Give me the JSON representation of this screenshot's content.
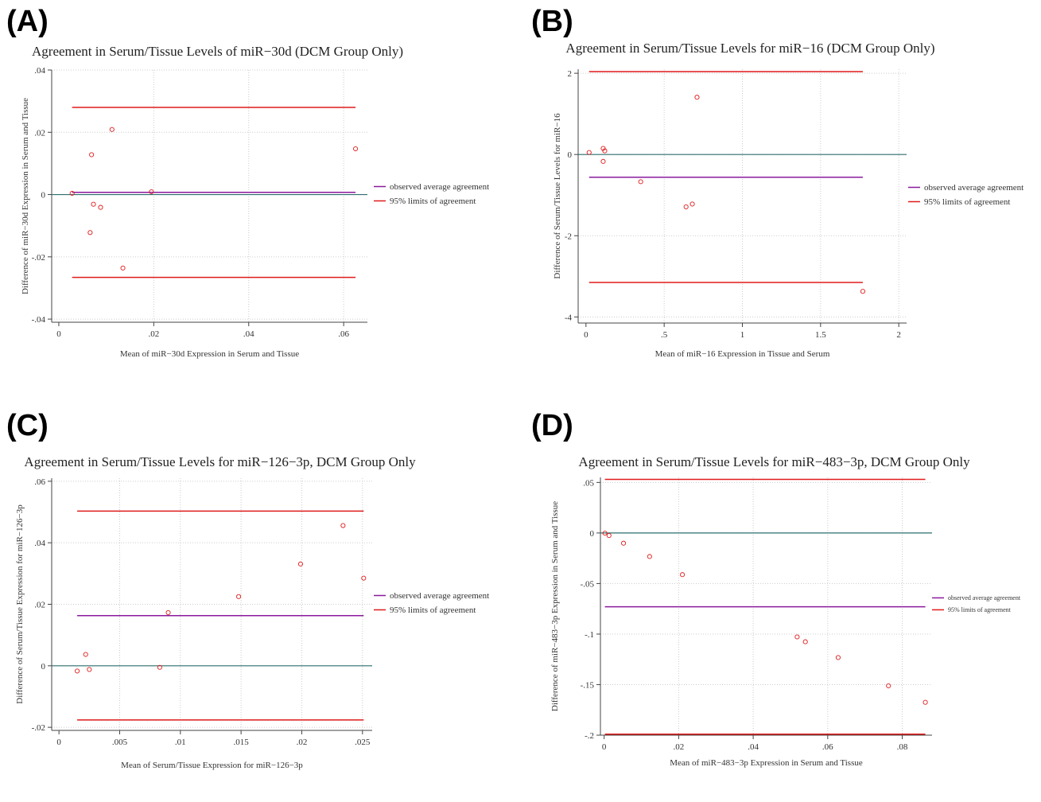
{
  "figure": {
    "panels": [
      {
        "letter": "(A)"
      },
      {
        "letter": "(B)"
      },
      {
        "letter": "(C)"
      },
      {
        "letter": "(D)"
      }
    ]
  },
  "colors": {
    "mean_line": "#8b1a9e",
    "limit_line": "#e01b1b",
    "zero_line": "#2f6f6f",
    "points": "#e01b1b",
    "grid": "#cccccc",
    "axis": "#444444"
  },
  "chart_data": [
    {
      "type": "scatter",
      "title": "Agreement in Serum/Tissue Levels of miR−30d (DCM Group Only)",
      "xlabel": "Mean of miR−30d Expression in Serum and Tissue",
      "ylabel": "Difference of miR−30d Expression in Serum and Tissue",
      "xlim": [
        -0.0015,
        0.065
      ],
      "ylim": [
        -0.041,
        0.04
      ],
      "xticks": [
        0,
        0.02,
        0.04,
        0.06
      ],
      "xtick_labels": [
        "0",
        ".02",
        ".04",
        ".06"
      ],
      "yticks": [
        -0.04,
        -0.02,
        0,
        0.02,
        0.04
      ],
      "ytick_labels": [
        "-.04",
        "-.02",
        "0",
        ".02",
        ".04"
      ],
      "grid": true,
      "legend_position": "right",
      "legend": [
        "observed average agreement",
        "95% limits of agreement"
      ],
      "points": [
        {
          "x": 0.0028,
          "y": 0.0004
        },
        {
          "x": 0.0066,
          "y": -0.0122
        },
        {
          "x": 0.0069,
          "y": 0.0128
        },
        {
          "x": 0.0073,
          "y": -0.0031
        },
        {
          "x": 0.0088,
          "y": -0.0041
        },
        {
          "x": 0.0112,
          "y": 0.0209
        },
        {
          "x": 0.0135,
          "y": -0.0236
        },
        {
          "x": 0.0195,
          "y": 0.0009
        },
        {
          "x": 0.0625,
          "y": 0.0147
        }
      ],
      "mean_difference": 0.0007,
      "limits_of_agreement": [
        -0.0266,
        0.028
      ],
      "reference_line_x_range": [
        0.0028,
        0.0625
      ]
    },
    {
      "type": "scatter",
      "title": "Agreement in Serum/Tissue Levels for miR−16 (DCM Group Only)",
      "xlabel": "Mean of miR−16 Expression in Tissue and Serum",
      "ylabel": "Difference of Serum/Tissue Levels for miR−16",
      "xlim": [
        -0.05,
        2.05
      ],
      "ylim": [
        -4.15,
        2.1
      ],
      "xticks": [
        0,
        0.5,
        1,
        1.5,
        2
      ],
      "xtick_labels": [
        "0",
        ".5",
        "1",
        "1.5",
        "2"
      ],
      "yticks": [
        -4,
        -2,
        0,
        2
      ],
      "ytick_labels": [
        "-4",
        "-2",
        "0",
        "2"
      ],
      "grid": true,
      "legend_position": "right",
      "legend": [
        "observed average agreement",
        "95% limits of agreement"
      ],
      "points": [
        {
          "x": 0.02,
          "y": 0.05
        },
        {
          "x": 0.11,
          "y": 0.15
        },
        {
          "x": 0.12,
          "y": 0.09
        },
        {
          "x": 0.11,
          "y": -0.17
        },
        {
          "x": 0.35,
          "y": -0.67
        },
        {
          "x": 0.64,
          "y": -1.29
        },
        {
          "x": 0.68,
          "y": -1.22
        },
        {
          "x": 0.71,
          "y": 1.41
        },
        {
          "x": 1.77,
          "y": -3.37
        }
      ],
      "mean_difference": -0.56,
      "limits_of_agreement": [
        -3.15,
        2.04
      ],
      "reference_line_x_range": [
        0.02,
        1.77
      ]
    },
    {
      "type": "scatter",
      "title": "Agreement in Serum/Tissue Levels for miR−126−3p, DCM Group Only",
      "xlabel": "Mean of Serum/Tissue Expression for miR−126−3p",
      "ylabel": "Difference of Serum/Tissue Expression for miR−126−3p",
      "xlim": [
        -0.0006,
        0.0258
      ],
      "ylim": [
        -0.021,
        0.061
      ],
      "xticks": [
        0,
        0.005,
        0.01,
        0.015,
        0.02,
        0.025
      ],
      "xtick_labels": [
        "0",
        ".005",
        ".01",
        ".015",
        ".02",
        ".025"
      ],
      "yticks": [
        -0.02,
        0,
        0.02,
        0.04,
        0.06
      ],
      "ytick_labels": [
        "-.02",
        "0",
        ".02",
        ".04",
        ".06"
      ],
      "grid": true,
      "legend_position": "right",
      "legend": [
        "observed average agreement",
        "95% limits of agreement"
      ],
      "points": [
        {
          "x": 0.0015,
          "y": -0.0017
        },
        {
          "x": 0.0022,
          "y": 0.0037
        },
        {
          "x": 0.0025,
          "y": -0.0012
        },
        {
          "x": 0.0083,
          "y": -0.0005
        },
        {
          "x": 0.009,
          "y": 0.0173
        },
        {
          "x": 0.0148,
          "y": 0.0225
        },
        {
          "x": 0.0199,
          "y": 0.0331
        },
        {
          "x": 0.0234,
          "y": 0.0456
        },
        {
          "x": 0.0251,
          "y": 0.0285
        }
      ],
      "mean_difference": 0.0163,
      "limits_of_agreement": [
        -0.0176,
        0.0503
      ],
      "reference_line_x_range": [
        0.0015,
        0.0251
      ]
    },
    {
      "type": "scatter",
      "title": "Agreement in Serum/Tissue Levels for miR−483−3p, DCM Group Only",
      "xlabel": "Mean of miR−483−3p Expression in Serum and Tissue",
      "ylabel": "Difference of miR−483−3p Expression in Serum and Tissue",
      "xlim": [
        -0.001,
        0.088
      ],
      "ylim": [
        -0.2,
        0.055
      ],
      "xticks": [
        0,
        0.02,
        0.04,
        0.06,
        0.08
      ],
      "xtick_labels": [
        "0",
        ".02",
        ".04",
        ".06",
        ".08"
      ],
      "yticks": [
        -0.2,
        -0.15,
        -0.1,
        -0.05,
        0,
        0.05
      ],
      "ytick_labels": [
        "-.2",
        "-.15",
        "-.1",
        "-.05",
        "0",
        ".05"
      ],
      "grid": true,
      "legend_position": "right",
      "legend": [
        "observed average agreement",
        "95% limits of agreement"
      ],
      "points": [
        {
          "x": 0.0002,
          "y": -0.0002
        },
        {
          "x": 0.0013,
          "y": -0.0025
        },
        {
          "x": 0.0052,
          "y": -0.0101
        },
        {
          "x": 0.0122,
          "y": -0.0233
        },
        {
          "x": 0.021,
          "y": -0.0412
        },
        {
          "x": 0.0518,
          "y": -0.1028
        },
        {
          "x": 0.054,
          "y": -0.1076
        },
        {
          "x": 0.0628,
          "y": -0.1232
        },
        {
          "x": 0.0763,
          "y": -0.1512
        },
        {
          "x": 0.0862,
          "y": -0.1675
        }
      ],
      "mean_difference": -0.073,
      "limits_of_agreement": [
        -0.199,
        0.053
      ],
      "reference_line_x_range": [
        0.0002,
        0.0862
      ]
    }
  ]
}
